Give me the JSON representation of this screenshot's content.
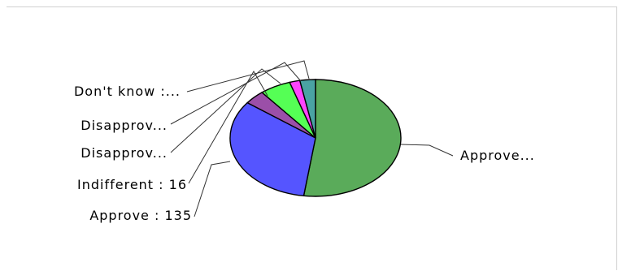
{
  "chart_data": {
    "type": "pie",
    "slices": [
      {
        "label": "Approve...",
        "value": 213,
        "color": "#5aab5a"
      },
      {
        "label": "Approve : 135",
        "value": 135,
        "color": "#5555ff"
      },
      {
        "label": "Indifferent : 16",
        "value": 16,
        "color": "#9b4fa8"
      },
      {
        "label": "Disapprov...",
        "value": 24,
        "color": "#55ff55"
      },
      {
        "label": "Disapprov...",
        "value": 8,
        "color": "#ff44ff"
      },
      {
        "label": "Don't know :...",
        "value": 12,
        "color": "#4aa3a3"
      }
    ],
    "legend": "none",
    "title": ""
  }
}
